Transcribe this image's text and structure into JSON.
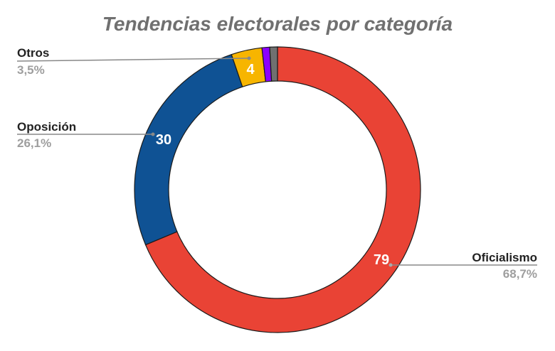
{
  "chart_data": {
    "type": "pie",
    "variant": "donut",
    "title": "Tendencias electorales por categoría",
    "categories": [
      "Oficialismo",
      "Oposición",
      "Otros",
      "Purple (unlabeled)",
      "Gray (unlabeled)"
    ],
    "values": [
      79,
      30,
      4,
      1,
      1
    ],
    "percent_labels": [
      "68,7%",
      "26,1%",
      "3,5%",
      "",
      ""
    ],
    "colors": [
      "#E94335",
      "#0F5294",
      "#F7B500",
      "#8B00FF",
      "#707070"
    ],
    "start_angle_deg": 0,
    "direction": "clockwise",
    "legend": "callout labels with leader lines",
    "slices": [
      {
        "name": "Oficialismo",
        "value": 79,
        "pct": "68,7%",
        "color": "#E94335",
        "label": "79"
      },
      {
        "name": "Oposición",
        "value": 30,
        "pct": "26,1%",
        "color": "#0F5294",
        "label": "30"
      },
      {
        "name": "Otros",
        "value": 4,
        "pct": "3,5%",
        "color": "#F7B500",
        "label": "4"
      },
      {
        "name": "",
        "value": 1,
        "pct": "",
        "color": "#8B00FF",
        "label": ""
      },
      {
        "name": "",
        "value": 1,
        "pct": "",
        "color": "#707070",
        "label": ""
      }
    ]
  },
  "callouts": {
    "oficialismo": {
      "name": "Oficialismo",
      "pct": "68,7%"
    },
    "oposicion": {
      "name": "Oposición",
      "pct": "26,1%"
    },
    "otros": {
      "name": "Otros",
      "pct": "3,5%"
    }
  },
  "slice_values": {
    "oficialismo": "79",
    "oposicion": "30",
    "otros": "4"
  }
}
